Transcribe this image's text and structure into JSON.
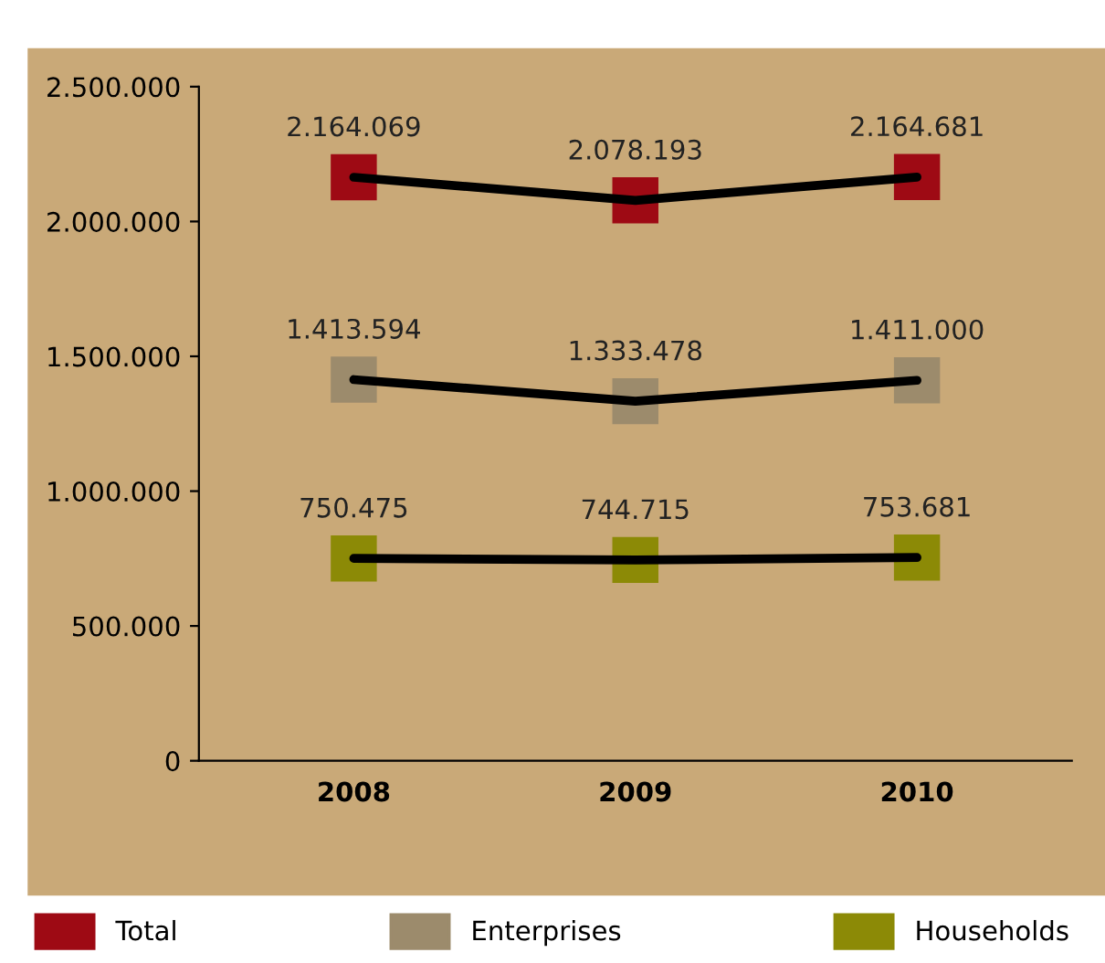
{
  "chart_data": {
    "type": "line",
    "categories": [
      "2008",
      "2009",
      "2010"
    ],
    "series": [
      {
        "name": "Total",
        "color": "#9e0a14",
        "values": [
          2164069,
          2078193,
          2164681
        ],
        "value_labels": [
          "2.164.069",
          "2.078.193",
          "2.164.681"
        ]
      },
      {
        "name": "Enterprises",
        "color": "#9c8b6c",
        "values": [
          1413594,
          1333478,
          1411000
        ],
        "value_labels": [
          "1.413.594",
          "1.333.478",
          "1.411.000"
        ]
      },
      {
        "name": "Households",
        "color": "#8c8a06",
        "values": [
          750475,
          744715,
          753681
        ],
        "value_labels": [
          "750.475",
          "744.715",
          "753.681"
        ]
      }
    ],
    "ylim": [
      0,
      2500000
    ],
    "yticks": [
      {
        "value": 0,
        "label": "0"
      },
      {
        "value": 500000,
        "label": "500.000"
      },
      {
        "value": 1000000,
        "label": "1.000.000"
      },
      {
        "value": 1500000,
        "label": "1.500.000"
      },
      {
        "value": 2000000,
        "label": "2.000.000"
      },
      {
        "value": 2500000,
        "label": "2.500.000"
      }
    ],
    "marker": "square",
    "line_style": "solid",
    "grid": false,
    "legend": "bottom"
  }
}
